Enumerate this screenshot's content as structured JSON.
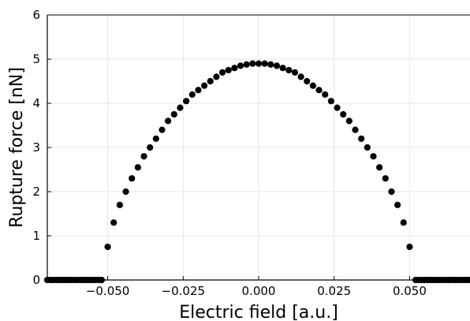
{
  "chart_data": {
    "type": "scatter",
    "title": "",
    "xlabel": "Electric field [a.u.]",
    "ylabel": "Rupture force [nN]",
    "xlim": [
      -0.07,
      0.07
    ],
    "ylim": [
      0,
      6
    ],
    "xticks": [
      -0.05,
      -0.025,
      0.0,
      0.025,
      0.05
    ],
    "xtick_labels": [
      "−0.050",
      "−0.025",
      "0.000",
      "0.025",
      "0.050"
    ],
    "yticks": [
      0,
      1,
      2,
      3,
      4,
      5,
      6
    ],
    "ytick_labels": [
      "0",
      "1",
      "2",
      "3",
      "4",
      "5",
      "6"
    ],
    "grid": true,
    "marker_color": "#000000",
    "series": [
      {
        "x": [
          -0.07,
          -0.069,
          -0.068,
          -0.067,
          -0.066,
          -0.065,
          -0.064,
          -0.063,
          -0.062,
          -0.061,
          -0.06,
          -0.059,
          -0.058,
          -0.057,
          -0.056,
          -0.055,
          -0.054,
          -0.053,
          -0.052,
          -0.05,
          -0.048,
          -0.046,
          -0.044,
          -0.042,
          -0.04,
          -0.038,
          -0.036,
          -0.034,
          -0.032,
          -0.03,
          -0.028,
          -0.026,
          -0.024,
          -0.022,
          -0.02,
          -0.018,
          -0.016,
          -0.014,
          -0.012,
          -0.01,
          -0.008,
          -0.006,
          -0.004,
          -0.002,
          0.0,
          0.002,
          0.004,
          0.006,
          0.008,
          0.01,
          0.012,
          0.014,
          0.016,
          0.018,
          0.02,
          0.022,
          0.024,
          0.026,
          0.028,
          0.03,
          0.032,
          0.034,
          0.036,
          0.038,
          0.04,
          0.042,
          0.044,
          0.046,
          0.048,
          0.05,
          0.052,
          0.053,
          0.054,
          0.055,
          0.056,
          0.057,
          0.058,
          0.059,
          0.06,
          0.061,
          0.062,
          0.063,
          0.064,
          0.065,
          0.066,
          0.067,
          0.068,
          0.069,
          0.07
        ],
        "y": [
          0,
          0,
          0,
          0,
          0,
          0,
          0,
          0,
          0,
          0,
          0,
          0,
          0,
          0,
          0,
          0,
          0,
          0,
          0,
          0.75,
          1.3,
          1.7,
          2.0,
          2.3,
          2.55,
          2.8,
          3.0,
          3.2,
          3.4,
          3.6,
          3.75,
          3.9,
          4.05,
          4.2,
          4.3,
          4.4,
          4.5,
          4.6,
          4.7,
          4.75,
          4.8,
          4.85,
          4.88,
          4.9,
          4.9,
          4.9,
          4.88,
          4.85,
          4.8,
          4.75,
          4.7,
          4.6,
          4.5,
          4.4,
          4.3,
          4.2,
          4.05,
          3.9,
          3.75,
          3.6,
          3.4,
          3.2,
          3.0,
          2.8,
          2.55,
          2.3,
          2.0,
          1.7,
          1.3,
          0.75,
          0,
          0,
          0,
          0,
          0,
          0,
          0,
          0,
          0,
          0,
          0,
          0,
          0,
          0,
          0,
          0,
          0,
          0,
          0
        ]
      }
    ]
  }
}
